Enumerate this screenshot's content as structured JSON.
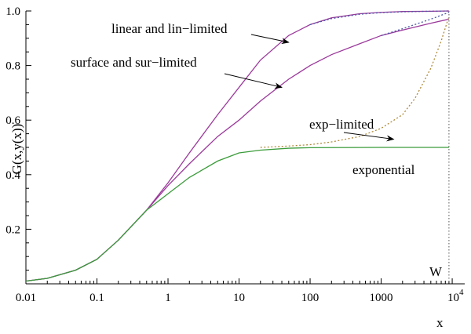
{
  "chart_data": {
    "type": "line",
    "xlabel": "x",
    "ylabel": "G(x,y(x))",
    "xscale": "log",
    "xlim": [
      0.01,
      15000
    ],
    "ylim": [
      0,
      1.0
    ],
    "x_ticks": [
      {
        "value": 0.01,
        "label": "0.01"
      },
      {
        "value": 0.1,
        "label": "0.1"
      },
      {
        "value": 1,
        "label": "1"
      },
      {
        "value": 10,
        "label": "10"
      },
      {
        "value": 100,
        "label": "100"
      },
      {
        "value": 1000,
        "label": "1000"
      }
    ],
    "x_tick_power": {
      "value": 10000,
      "base": "10",
      "exp": "4"
    },
    "y_ticks": [
      {
        "value": 0.2,
        "label": "0.2"
      },
      {
        "value": 0.4,
        "label": "0.4"
      },
      {
        "value": 0.6,
        "label": "0.6"
      },
      {
        "value": 0.8,
        "label": "0.8"
      },
      {
        "value": 1.0,
        "label": "1.0"
      }
    ],
    "vertical_marker": {
      "x": 9000,
      "label": "W",
      "style": "dotted"
    },
    "series": [
      {
        "key": "linear",
        "color": "#9b3a9b",
        "style": "solid",
        "x": [
          0.01,
          0.02,
          0.05,
          0.1,
          0.2,
          0.5,
          1,
          2,
          5,
          10,
          20,
          50,
          100,
          200,
          500,
          1000,
          2000,
          5000,
          9000
        ],
        "y": [
          0.01,
          0.02,
          0.05,
          0.09,
          0.16,
          0.27,
          0.37,
          0.48,
          0.62,
          0.72,
          0.82,
          0.91,
          0.95,
          0.975,
          0.99,
          0.995,
          0.998,
          0.999,
          1.0
        ]
      },
      {
        "key": "lin-limited",
        "color": "#4a58a8",
        "style": "dotted",
        "x": [
          100,
          200,
          500,
          1000,
          2000,
          5000,
          9000
        ],
        "y": [
          0.95,
          0.972,
          0.988,
          0.994,
          0.997,
          0.999,
          1.0
        ]
      },
      {
        "key": "surface",
        "color": "#9b3a9b",
        "style": "solid",
        "x": [
          0.01,
          0.02,
          0.05,
          0.1,
          0.2,
          0.5,
          1,
          2,
          5,
          10,
          20,
          50,
          100,
          200,
          500,
          1000,
          2000,
          5000,
          9000
        ],
        "y": [
          0.01,
          0.02,
          0.05,
          0.09,
          0.16,
          0.27,
          0.36,
          0.44,
          0.54,
          0.6,
          0.67,
          0.75,
          0.8,
          0.84,
          0.88,
          0.91,
          0.93,
          0.955,
          0.97
        ]
      },
      {
        "key": "sur-limited",
        "color": "#4a58a8",
        "style": "dotted",
        "x": [
          1000,
          2000,
          5000,
          9000
        ],
        "y": [
          0.91,
          0.935,
          0.97,
          0.995
        ]
      },
      {
        "key": "exp-limited",
        "color": "#b08a3a",
        "style": "dotted",
        "x": [
          20,
          50,
          100,
          200,
          500,
          1000,
          2000,
          3000,
          5000,
          7000,
          9000
        ],
        "y": [
          0.5,
          0.505,
          0.51,
          0.52,
          0.54,
          0.57,
          0.62,
          0.68,
          0.79,
          0.89,
          0.98
        ]
      },
      {
        "key": "exponential",
        "color": "#3a9b3a",
        "style": "solid",
        "x": [
          0.01,
          0.02,
          0.05,
          0.1,
          0.2,
          0.5,
          1,
          2,
          5,
          10,
          20,
          50,
          100,
          1000,
          9000
        ],
        "y": [
          0.01,
          0.02,
          0.05,
          0.09,
          0.16,
          0.27,
          0.33,
          0.39,
          0.45,
          0.48,
          0.49,
          0.497,
          0.499,
          0.5,
          0.5
        ]
      }
    ],
    "annotations": [
      {
        "text": "linear and lin−limited",
        "target": {
          "x": 50,
          "y": 0.885
        }
      },
      {
        "text": "surface and sur−limited",
        "target": {
          "x": 40,
          "y": 0.72
        }
      },
      {
        "text": "exp−limited",
        "target": {
          "x": 1500,
          "y": 0.53
        }
      },
      {
        "text": "exponential",
        "target": null
      }
    ]
  }
}
